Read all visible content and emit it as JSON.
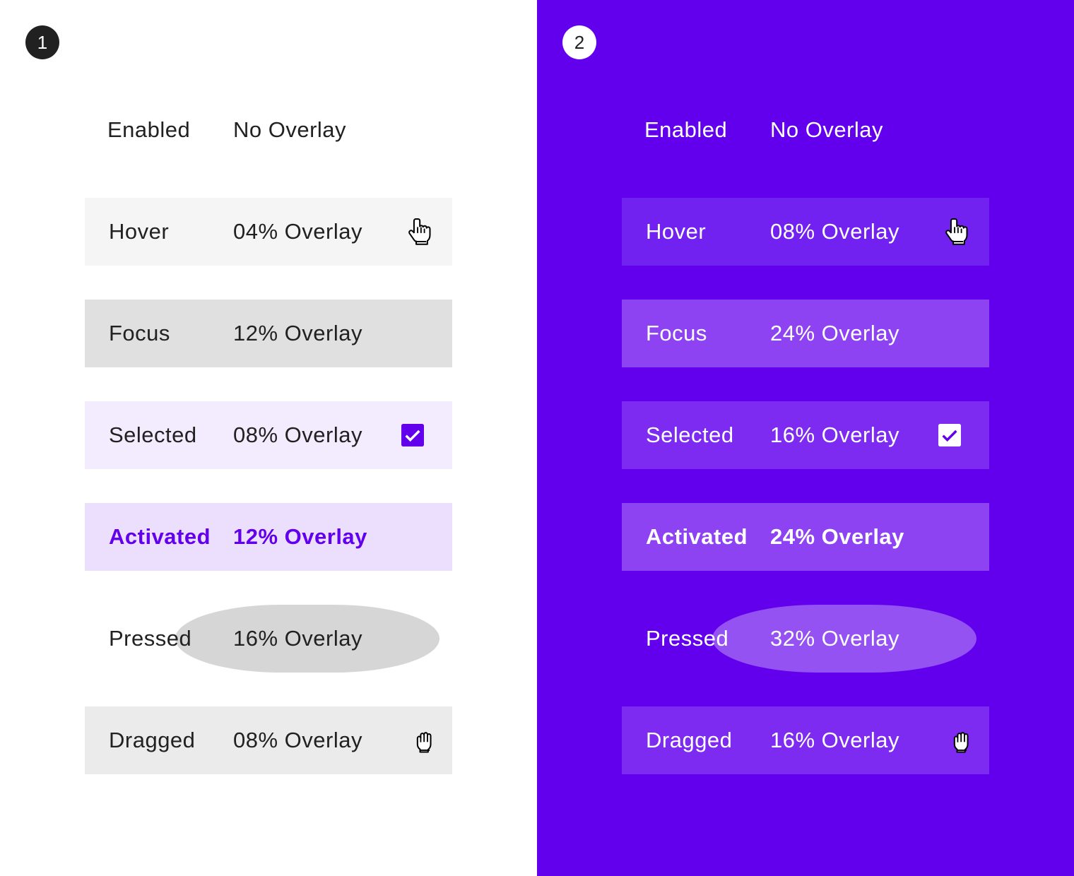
{
  "panels": [
    {
      "badge": "1",
      "background": "#ffffff",
      "rows": [
        {
          "state": "Enabled",
          "overlay": "No Overlay",
          "fill": null
        },
        {
          "state": "Hover",
          "overlay": "04% Overlay",
          "fill": "#f5f5f5",
          "icon": "hand-pointer-icon"
        },
        {
          "state": "Focus",
          "overlay": "12% Overlay",
          "fill": "#e0e0e0"
        },
        {
          "state": "Selected",
          "overlay": "08% Overlay",
          "fill": "#f3ebfe",
          "icon": "checkbox-checked-icon"
        },
        {
          "state": "Activated",
          "overlay": "12% Overlay",
          "fill": "#ecdffd"
        },
        {
          "state": "Pressed",
          "overlay": "16% Overlay",
          "fill": "#d6d6d6"
        },
        {
          "state": "Dragged",
          "overlay": "08% Overlay",
          "fill": "#ebebeb",
          "icon": "hand-grab-icon"
        }
      ]
    },
    {
      "badge": "2",
      "background": "#6200ee",
      "rows": [
        {
          "state": "Enabled",
          "overlay": "No Overlay",
          "fill": null
        },
        {
          "state": "Hover",
          "overlay": "08% Overlay",
          "fill": "#7222f0",
          "icon": "hand-pointer-icon"
        },
        {
          "state": "Focus",
          "overlay": "24% Overlay",
          "fill": "#8e43f3"
        },
        {
          "state": "Selected",
          "overlay": "16% Overlay",
          "fill": "#7d2bf1",
          "icon": "checkbox-checked-icon"
        },
        {
          "state": "Activated",
          "overlay": "24% Overlay",
          "fill": "#8e43f3"
        },
        {
          "state": "Pressed",
          "overlay": "32% Overlay",
          "fill": "#9552f3"
        },
        {
          "state": "Dragged",
          "overlay": "16% Overlay",
          "fill": "#7d2bf1",
          "icon": "hand-grab-icon"
        }
      ]
    }
  ]
}
